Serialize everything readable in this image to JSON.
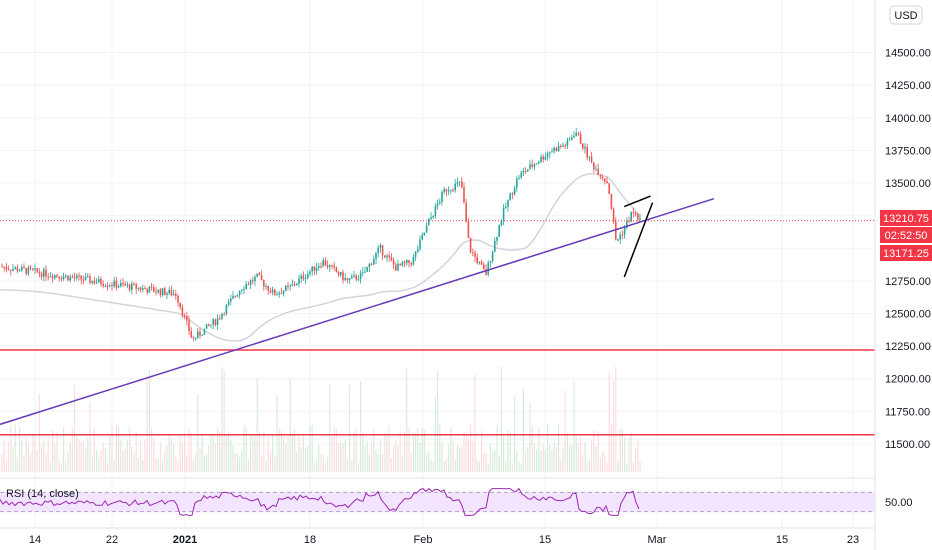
{
  "currency_label": "USD",
  "rsi_label": "RSI (14, close)",
  "price_tags": {
    "last": "13210.75",
    "countdown": "02:52:50",
    "low": "13171.25"
  },
  "colors": {
    "up": "#26a69a",
    "down": "#ef5350",
    "trendline": "#673ab7",
    "hline": "#f23645",
    "ma": "#d1d4dc",
    "rsi_line": "#9c27b0",
    "rsi_band": "#f3e5ff"
  },
  "chart_data": {
    "type": "candlestick",
    "y_ticks": [
      "14500.00",
      "14250.00",
      "14000.00",
      "13750.00",
      "13500.00",
      "13250.00",
      "13000.00",
      "12750.00",
      "12500.00",
      "12250.00",
      "12000.00",
      "11750.00",
      "11500.00"
    ],
    "x_ticks": [
      "14",
      "22",
      "2021",
      "18",
      "Feb",
      "15",
      "Mar",
      "15",
      "23"
    ],
    "ylim": [
      11400,
      14800
    ],
    "last_price": 13210.75,
    "horizontal_lines": [
      12220,
      11570
    ],
    "trendline": {
      "start": {
        "x": "Jan 1",
        "y": 11650
      },
      "end": {
        "x": "Mar 8",
        "y": 13380
      }
    },
    "wedge": {
      "upper": [
        {
          "x": "Feb 25",
          "y": 13320
        },
        {
          "x": "Feb 27",
          "y": 13400
        }
      ],
      "lower": [
        {
          "x": "Feb 25",
          "y": 12780
        },
        {
          "x": "Feb 27",
          "y": 13350
        }
      ]
    },
    "close_path": [
      {
        "x": "Jan 1",
        "y": 12650
      },
      {
        "x": "Jan 3",
        "y": 12300
      },
      {
        "x": "Jan 6",
        "y": 12450
      },
      {
        "x": "Jan 9",
        "y": 12700
      },
      {
        "x": "Jan 11",
        "y": 12780
      },
      {
        "x": "Jan 13",
        "y": 12650
      },
      {
        "x": "Jan 15",
        "y": 12700
      },
      {
        "x": "Jan 17",
        "y": 12800
      },
      {
        "x": "Jan 19",
        "y": 12900
      },
      {
        "x": "Jan 22",
        "y": 12750
      },
      {
        "x": "Jan 24",
        "y": 12800
      },
      {
        "x": "Jan 26",
        "y": 13000
      },
      {
        "x": "Jan 28",
        "y": 12850
      },
      {
        "x": "Jan 30",
        "y": 12900
      },
      {
        "x": "Feb 1",
        "y": 13200
      },
      {
        "x": "Feb 3",
        "y": 13450
      },
      {
        "x": "Feb 5",
        "y": 13500
      },
      {
        "x": "Feb 6",
        "y": 13000
      },
      {
        "x": "Feb 8",
        "y": 12800
      },
      {
        "x": "Feb 10",
        "y": 13250
      },
      {
        "x": "Feb 12",
        "y": 13550
      },
      {
        "x": "Feb 14",
        "y": 13650
      },
      {
        "x": "Feb 16",
        "y": 13750
      },
      {
        "x": "Feb 18",
        "y": 13800
      },
      {
        "x": "Feb 19",
        "y": 13900
      },
      {
        "x": "Feb 21",
        "y": 13650
      },
      {
        "x": "Feb 23",
        "y": 13500
      },
      {
        "x": "Feb 24",
        "y": 13050
      },
      {
        "x": "Feb 25",
        "y": 13150
      },
      {
        "x": "Feb 26",
        "y": 13280
      },
      {
        "x": "Feb 27",
        "y": 13210
      }
    ],
    "rsi_ticks": [
      "50.00"
    ],
    "rsi_ylim": [
      0,
      100
    ]
  }
}
